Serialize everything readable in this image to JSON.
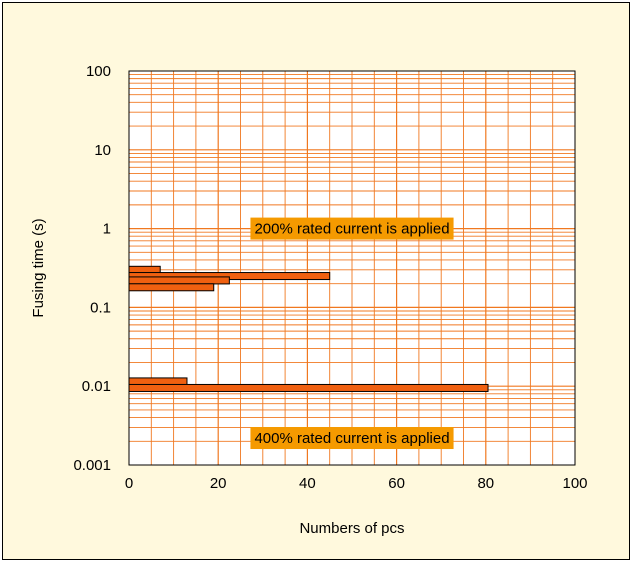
{
  "chart_data": {
    "type": "bar",
    "orientation": "horizontal",
    "xlabel": "Numbers of pcs",
    "ylabel": "Fusing time (s)",
    "xlim": [
      0,
      100
    ],
    "ylim": [
      0.001,
      100
    ],
    "y_scale": "log",
    "x_ticks": [
      "0",
      "20",
      "40",
      "60",
      "80",
      "100"
    ],
    "y_ticks": [
      "0.001",
      "0.01",
      "0.1",
      "1",
      "10",
      "100"
    ],
    "grid": true,
    "bars": [
      {
        "y": 0.3,
        "value": 7
      },
      {
        "y": 0.25,
        "value": 45
      },
      {
        "y": 0.22,
        "value": 22.5
      },
      {
        "y": 0.18,
        "value": 19
      },
      {
        "y": 0.0115,
        "value": 13
      },
      {
        "y": 0.0095,
        "value": 80.5
      }
    ],
    "annotations": [
      {
        "text": "200% rated current is applied",
        "y": 1.0
      },
      {
        "text": "400% rated current is applied",
        "y": 0.0022
      }
    ],
    "colors": {
      "background": "#FFF9DD",
      "grid": "#F07820",
      "bar": "#F06010",
      "bar_stroke": "#000000",
      "annotation_bg": "#F59A00"
    }
  }
}
